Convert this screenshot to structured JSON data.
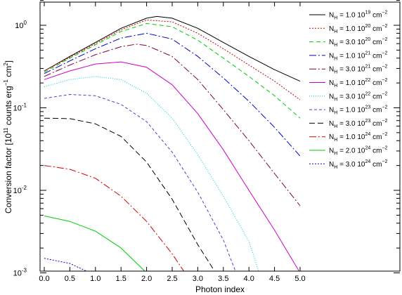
{
  "chart_data": {
    "type": "line",
    "title": "",
    "xlabel": "Photon index",
    "ylabel": {
      "prefix": "Conversion factor [10",
      "exp1": "11",
      "mid": " counts erg",
      "exp2": "−1",
      "mid2": " cm",
      "exp3": "2",
      "suffix": "]"
    },
    "x_scale": "linear",
    "y_scale": "log",
    "xlim": [
      0.0,
      5.0
    ],
    "ylim": [
      0.001,
      2.0
    ],
    "x_ticks": [
      "0.0",
      "0.5",
      "1.0",
      "1.5",
      "2.0",
      "2.5",
      "3.0",
      "3.5",
      "4.0",
      "4.5",
      "5.0"
    ],
    "y_ticks": [
      {
        "base": "10",
        "exp": "0",
        "value": 1.0
      },
      {
        "base": "10",
        "exp": "-1",
        "value": 0.1
      },
      {
        "base": "10",
        "exp": "-2",
        "value": 0.01
      },
      {
        "base": "10",
        "exp": "-3",
        "value": 0.001
      }
    ],
    "legend_position": "top-right",
    "grid": false,
    "series": [
      {
        "name_pre": "N",
        "name_sub": "H",
        "name_val": " = 1.0 10",
        "name_exp": "19",
        "name_unit": " cm",
        "name_unit_exp": "−2",
        "color": "#000000",
        "dash": "",
        "x": [
          0.0,
          0.5,
          1.0,
          1.5,
          2.0,
          2.2,
          2.5,
          3.0,
          3.5,
          4.0,
          4.5,
          5.0
        ],
        "y": [
          0.28,
          0.42,
          0.62,
          0.92,
          1.22,
          1.28,
          1.22,
          0.92,
          0.62,
          0.42,
          0.29,
          0.21
        ]
      },
      {
        "name_pre": "N",
        "name_sub": "H",
        "name_val": " = 1.0 10",
        "name_exp": "20",
        "name_unit": " cm",
        "name_unit_exp": "−2",
        "color": "#cc0000",
        "dash": "2,2",
        "x": [
          0.0,
          0.5,
          1.0,
          1.5,
          2.0,
          2.5,
          3.0,
          3.5,
          4.0,
          4.5,
          5.0
        ],
        "y": [
          0.28,
          0.41,
          0.6,
          0.88,
          1.16,
          1.1,
          0.8,
          0.52,
          0.33,
          0.21,
          0.125
        ]
      },
      {
        "name_pre": "N",
        "name_sub": "H",
        "name_val": " = 3.0 10",
        "name_exp": "20",
        "name_unit": " cm",
        "name_unit_exp": "−2",
        "color": "#00cc00",
        "dash": "6,4",
        "x": [
          0.0,
          0.5,
          1.0,
          1.5,
          2.0,
          2.5,
          3.0,
          3.5,
          4.0,
          4.5,
          5.0
        ],
        "y": [
          0.27,
          0.4,
          0.58,
          0.84,
          1.05,
          0.96,
          0.66,
          0.4,
          0.24,
          0.14,
          0.075
        ]
      },
      {
        "name_pre": "N",
        "name_sub": "H",
        "name_val": " = 1.0 10",
        "name_exp": "21",
        "name_unit": " cm",
        "name_unit_exp": "−2",
        "color": "#0000cc",
        "dash": "10,3,2,3",
        "x": [
          0.0,
          0.5,
          1.0,
          1.5,
          2.0,
          2.5,
          3.0,
          3.5,
          4.0,
          4.5,
          5.0
        ],
        "y": [
          0.26,
          0.37,
          0.52,
          0.7,
          0.8,
          0.68,
          0.42,
          0.23,
          0.12,
          0.058,
          0.026
        ]
      },
      {
        "name_pre": "N",
        "name_sub": "H",
        "name_val": " = 3.0 10",
        "name_exp": "21",
        "name_unit": " cm",
        "name_unit_exp": "−2",
        "color": "#800040",
        "dash": "10,3,2,3",
        "x": [
          0.0,
          0.5,
          1.0,
          1.5,
          1.8,
          2.0,
          2.5,
          3.0,
          3.5,
          4.0,
          4.5,
          5.0
        ],
        "y": [
          0.24,
          0.33,
          0.44,
          0.55,
          0.59,
          0.57,
          0.42,
          0.22,
          0.095,
          0.04,
          0.016,
          0.0065
        ]
      },
      {
        "name_pre": "N",
        "name_sub": "H",
        "name_val": " = 1.0 10",
        "name_exp": "22",
        "name_unit": " cm",
        "name_unit_exp": "−2",
        "color": "#cc00cc",
        "dash": "",
        "x": [
          0.0,
          0.5,
          1.0,
          1.5,
          2.0,
          2.5,
          3.0,
          3.5,
          4.0,
          4.5,
          5.0
        ],
        "y": [
          0.22,
          0.28,
          0.34,
          0.36,
          0.31,
          0.19,
          0.085,
          0.031,
          0.01,
          0.0033,
          0.001
        ]
      },
      {
        "name_pre": "N",
        "name_sub": "H",
        "name_val": " = 3.0 10",
        "name_exp": "22",
        "name_unit": " cm",
        "name_unit_exp": "−2",
        "color": "#00cccc",
        "dash": "1,2",
        "x": [
          0.0,
          0.5,
          1.0,
          1.5,
          2.0,
          2.5,
          3.0,
          3.5,
          4.0,
          4.2
        ],
        "y": [
          0.18,
          0.22,
          0.24,
          0.22,
          0.15,
          0.075,
          0.027,
          0.0085,
          0.0024,
          0.001
        ]
      },
      {
        "name_pre": "N",
        "name_sub": "H",
        "name_val": " = 1.0 10",
        "name_exp": "23",
        "name_unit": " cm",
        "name_unit_exp": "−2",
        "color": "#6633cc",
        "dash": "4,3",
        "x": [
          0.0,
          0.5,
          1.0,
          1.5,
          2.0,
          2.5,
          3.0,
          3.5,
          3.75
        ],
        "y": [
          0.13,
          0.145,
          0.14,
          0.11,
          0.068,
          0.029,
          0.0095,
          0.0025,
          0.001
        ]
      },
      {
        "name_pre": "N",
        "name_sub": "H",
        "name_val": " = 3.0 10",
        "name_exp": "23",
        "name_unit": " cm",
        "name_unit_exp": "−2",
        "color": "#000000",
        "dash": "8,4",
        "x": [
          0.0,
          0.5,
          1.0,
          1.5,
          2.0,
          2.5,
          3.0,
          3.35
        ],
        "y": [
          0.075,
          0.074,
          0.064,
          0.045,
          0.022,
          0.0078,
          0.0022,
          0.001
        ]
      },
      {
        "name_pre": "N",
        "name_sub": "H",
        "name_val": " = 1.0 10",
        "name_exp": "24",
        "name_unit": " cm",
        "name_unit_exp": "−2",
        "color": "#cc0000",
        "dash": "10,3,2,3",
        "x": [
          0.0,
          0.5,
          1.0,
          1.5,
          2.0,
          2.5,
          2.75
        ],
        "y": [
          0.02,
          0.018,
          0.014,
          0.0085,
          0.0042,
          0.0017,
          0.001
        ]
      },
      {
        "name_pre": "N",
        "name_sub": "H",
        "name_val": " = 2.0 10",
        "name_exp": "24",
        "name_unit": " cm",
        "name_unit_exp": "−2",
        "color": "#00cc00",
        "dash": "",
        "x": [
          0.0,
          0.5,
          1.0,
          1.5,
          2.0
        ],
        "y": [
          0.0049,
          0.0042,
          0.0032,
          0.002,
          0.001
        ]
      },
      {
        "name_pre": "N",
        "name_sub": "H",
        "name_val": " = 3.0 10",
        "name_exp": "24",
        "name_unit": " cm",
        "name_unit_exp": "−2",
        "color": "#0000cc",
        "dash": "2,2",
        "x": [
          0.0,
          0.5,
          0.9
        ],
        "y": [
          0.0015,
          0.0013,
          0.001
        ]
      }
    ]
  }
}
